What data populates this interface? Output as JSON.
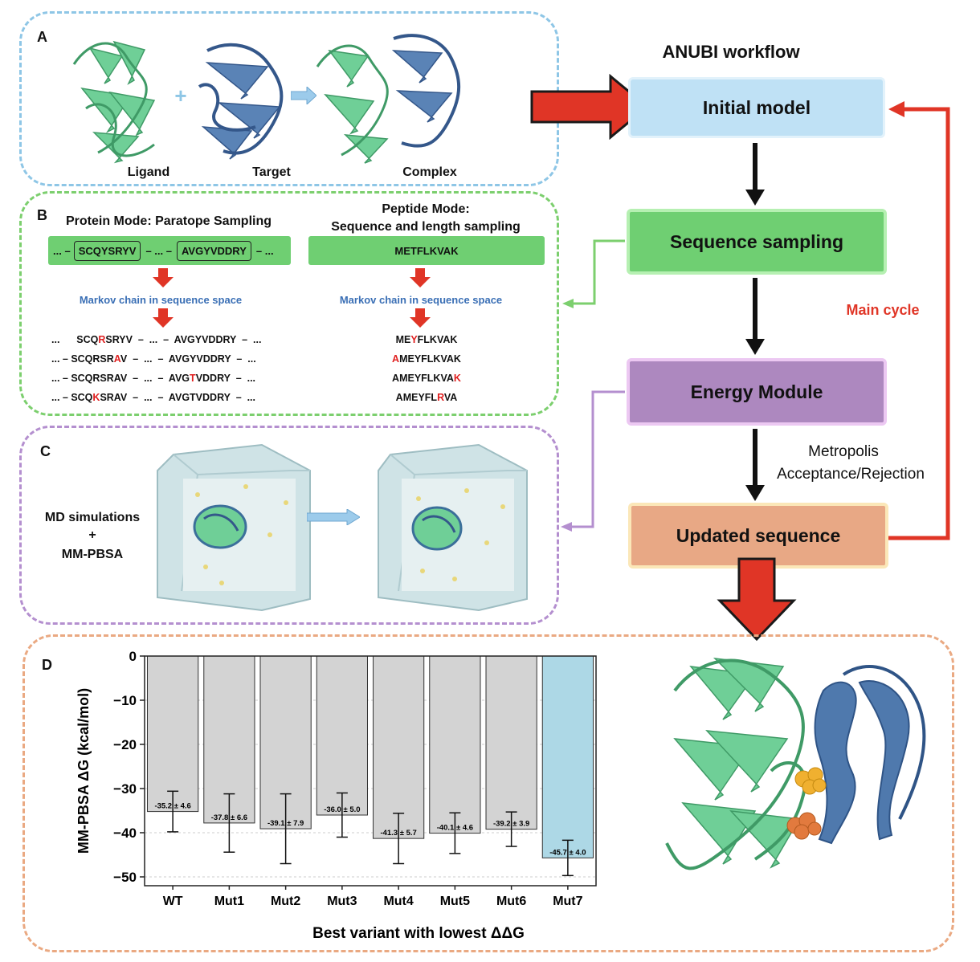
{
  "workflow": {
    "title": "ANUBI workflow",
    "initial_model": "Initial model",
    "sequence_sampling": "Sequence sampling",
    "energy_module": "Energy Module",
    "updated_sequence": "Updated sequence",
    "metropolis_line1": "Metropolis",
    "metropolis_line2": "Acceptance/Rejection",
    "main_cycle": "Main cycle"
  },
  "panelA": {
    "label": "A",
    "ligand": "Ligand",
    "target": "Target",
    "complex": "Complex",
    "plus": "+"
  },
  "panelB": {
    "label": "B",
    "protein_mode_title": "Protein Mode: Paratope Sampling",
    "peptide_mode_title_line1": "Peptide Mode:",
    "peptide_mode_title_line2": "Sequence and length sampling",
    "protein_seq": {
      "prefix": "... –",
      "cdr1": "SCQYSRYV",
      "middle": "– ... –",
      "cdr2": "AVGYVDDRY",
      "suffix": "– ..."
    },
    "peptide_seq": "METFLKVAK",
    "markov_left": "Markov chain in sequence space",
    "markov_right": "Markov chain in sequence space",
    "protein_variants": [
      [
        {
          "t": "...      SCQ"
        },
        {
          "t": "R",
          "m": true
        },
        {
          "t": "SRYV  –  ...  –  AVGYVDDRY  –  ..."
        }
      ],
      [
        {
          "t": "... – SCQRSR"
        },
        {
          "t": "A",
          "m": true
        },
        {
          "t": "V  –  ...  –  AVGYVDDRY  –  ..."
        }
      ],
      [
        {
          "t": "... – SCQRSRAV  –  ...  –  AVG"
        },
        {
          "t": "T",
          "m": true
        },
        {
          "t": "VDDRY  –  ..."
        }
      ],
      [
        {
          "t": "... – SCQ"
        },
        {
          "t": "K",
          "m": true
        },
        {
          "t": "SRAV  –  ...  –  AVGTVDDRY  –  ..."
        }
      ]
    ],
    "peptide_variants": [
      [
        {
          "t": "ME"
        },
        {
          "t": "Y",
          "m": true
        },
        {
          "t": "FLKVAK"
        }
      ],
      [
        {
          "t": "A",
          "m": true
        },
        {
          "t": "MEYFLKVAK"
        }
      ],
      [
        {
          "t": "AMEYFLKVA"
        },
        {
          "t": "K",
          "m": true
        }
      ],
      [
        {
          "t": "AMEYFL"
        },
        {
          "t": "R",
          "m": true
        },
        {
          "t": "VA"
        }
      ]
    ]
  },
  "panelC": {
    "label": "C",
    "method_line1": "MD simulations",
    "method_line2": "+",
    "method_line3": "MM-PBSA"
  },
  "panelD": {
    "label": "D"
  },
  "chart_data": {
    "type": "bar",
    "categories": [
      "WT",
      "Mut1",
      "Mut2",
      "Mut3",
      "Mut4",
      "Mut5",
      "Mut6",
      "Mut7"
    ],
    "values": [
      -35.2,
      -37.8,
      -39.1,
      -36.0,
      -41.3,
      -40.1,
      -39.2,
      -45.7
    ],
    "errors": [
      4.6,
      6.6,
      7.9,
      5.0,
      5.7,
      4.6,
      3.9,
      4.0
    ],
    "bar_labels": [
      "-35.2 ± 4.6",
      "-37.8 ± 6.6",
      "-39.1 ± 7.9",
      "-36.0 ± 5.0",
      "-41.3 ± 5.7",
      "-40.1 ± 4.6",
      "-39.2 ± 3.9",
      "-45.7 ± 4.0"
    ],
    "highlight_index": 7,
    "ylabel": "MM-PBSA ΔG (kcal/mol)",
    "xlabel": "Best variant with lowest ΔΔG",
    "ylim": [
      -52,
      0
    ],
    "yticks": [
      0,
      -10,
      -20,
      -30,
      -40,
      -50
    ],
    "ytick_labels": [
      "0",
      "−10",
      "−20",
      "−30",
      "−40",
      "−50"
    ],
    "colors": {
      "bar": "#d3d3d3",
      "highlight": "#add8e6",
      "grid": "#cccccc"
    }
  },
  "colors": {
    "panelA_border": "#8ec6e6",
    "panelB_border": "#7ccf6e",
    "panelC_border": "#b48fcf",
    "panelD_border": "#eaa982",
    "initial_model": "#bfe1f5",
    "sequence_sampling": "#6fcf72",
    "energy_module": "#ad88bf",
    "updated_sequence": "#e8a885",
    "arrow_red": "#e03526",
    "ligand_green": "#6fcf97",
    "target_blue": "#4f79ad"
  }
}
